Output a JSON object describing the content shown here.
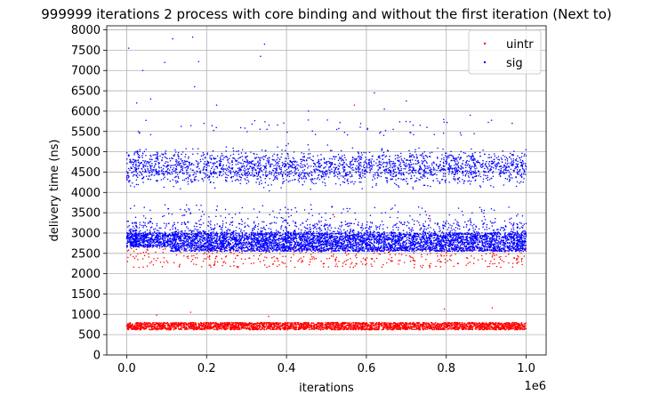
{
  "chart_data": {
    "type": "scatter",
    "title": "999999 iterations 2 process with core binding and without the first iteration (Next to)",
    "xlabel": "iterations",
    "ylabel": "delivery time (ns)",
    "x_offset_label": "1e6",
    "xlim": [
      -50000,
      1050000
    ],
    "ylim": [
      0,
      8100
    ],
    "xticks": [
      0,
      0.2,
      0.4,
      0.6,
      0.8,
      1.0
    ],
    "xtick_labels": [
      "0.0",
      "0.2",
      "0.4",
      "0.6",
      "0.8",
      "1.0"
    ],
    "yticks": [
      0,
      500,
      1000,
      1500,
      2000,
      2500,
      3000,
      3500,
      4000,
      4500,
      5000,
      5500,
      6000,
      6500,
      7000,
      7500,
      8000
    ],
    "ytick_labels": [
      "0",
      "500",
      "1000",
      "1500",
      "2000",
      "2500",
      "3000",
      "3500",
      "4000",
      "4500",
      "5000",
      "5500",
      "6000",
      "6500",
      "7000",
      "7500",
      "8000"
    ],
    "grid": true,
    "legend_position": "top-right",
    "series": [
      {
        "name": "uintr",
        "color": "#ff0000",
        "x_range": [
          0,
          999999
        ],
        "bands": [
          {
            "y_min": 620,
            "y_max": 800,
            "description": "dense main band"
          },
          {
            "y_min": 2150,
            "y_max": 2650,
            "description": "sparse secondary band"
          }
        ],
        "outliers": [
          {
            "x": 75000,
            "y": 980
          },
          {
            "x": 160000,
            "y": 1050
          },
          {
            "x": 355000,
            "y": 950
          },
          {
            "x": 570000,
            "y": 6150
          },
          {
            "x": 795000,
            "y": 1130
          },
          {
            "x": 915000,
            "y": 1160
          },
          {
            "x": 520000,
            "y": 3400
          },
          {
            "x": 760000,
            "y": 3350
          }
        ]
      },
      {
        "name": "sig",
        "color": "#0000ff",
        "x_range": [
          0,
          999999
        ],
        "bands": [
          {
            "y_min": 2550,
            "y_max": 3000,
            "description": "dense main band"
          },
          {
            "y_min": 3000,
            "y_max": 3300,
            "description": "moderate upper edge"
          },
          {
            "y_min": 3700,
            "y_max": 5400,
            "description": "sparse upper cluster centered near 4600"
          }
        ],
        "outliers": [
          {
            "x": 5000,
            "y": 7550
          },
          {
            "x": 40000,
            "y": 7000
          },
          {
            "x": 95000,
            "y": 7200
          },
          {
            "x": 115000,
            "y": 7780
          },
          {
            "x": 165000,
            "y": 7820
          },
          {
            "x": 180000,
            "y": 7220
          },
          {
            "x": 170000,
            "y": 6600
          },
          {
            "x": 335000,
            "y": 7350
          },
          {
            "x": 345000,
            "y": 7650
          },
          {
            "x": 620000,
            "y": 6450
          },
          {
            "x": 700000,
            "y": 6250
          },
          {
            "x": 25000,
            "y": 6200
          },
          {
            "x": 60000,
            "y": 6300
          },
          {
            "x": 225000,
            "y": 6150
          },
          {
            "x": 455000,
            "y": 6000
          },
          {
            "x": 645000,
            "y": 6050
          },
          {
            "x": 965000,
            "y": 5700
          },
          {
            "x": 860000,
            "y": 5900
          }
        ]
      }
    ]
  }
}
